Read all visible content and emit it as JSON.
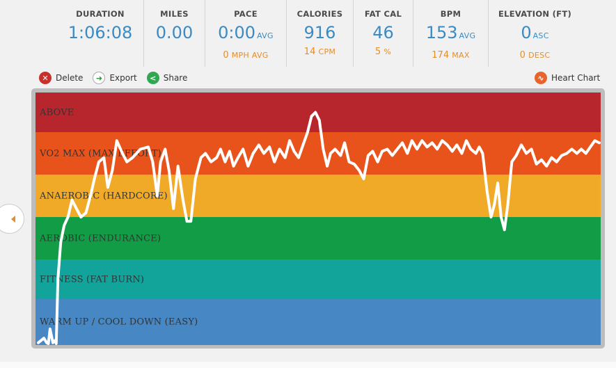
{
  "stats": {
    "duration": {
      "label": "DURATION",
      "value": "1:06:08"
    },
    "miles": {
      "label": "MILES",
      "value": "0.00"
    },
    "pace": {
      "label": "PACE",
      "value": "0:00",
      "unit": "AVG",
      "sub_value": "0",
      "sub_unit": "MPH AVG"
    },
    "calories": {
      "label": "CALORIES",
      "value": "916",
      "sub_value": "14",
      "sub_unit": "CPM"
    },
    "fat_cal": {
      "label": "FAT CAL",
      "value": "46",
      "sub_value": "5",
      "sub_unit": "%"
    },
    "bpm": {
      "label": "BPM",
      "value": "153",
      "unit": "AVG",
      "sub_value": "174",
      "sub_unit": "MAX"
    },
    "elevation": {
      "label": "ELEVATION (FT)",
      "value": "0",
      "unit": "ASC",
      "sub_value": "0",
      "sub_unit": "DESC"
    }
  },
  "toolbar": {
    "delete_label": "Delete",
    "export_label": "Export",
    "share_label": "Share",
    "heart_chart_label": "Heart Chart"
  },
  "zones": [
    {
      "label": "ABOVE",
      "color": "#b8262d"
    },
    {
      "label": "VO2 MAX (MAX EFFORT)",
      "color": "#e8521b"
    },
    {
      "label": "ANAEROBIC (HARDCORE)",
      "color": "#f0aa27"
    },
    {
      "label": "AEROBIC (ENDURANCE)",
      "color": "#139c46"
    },
    {
      "label": "FITNESS (FAT BURN)",
      "color": "#12a39a"
    },
    {
      "label": "WARM UP / COOL DOWN (EASY)",
      "color": "#4787c4"
    }
  ],
  "colors": {
    "accent_blue": "#3b8ac2",
    "accent_orange": "#e38d2b",
    "hr_line": "#ffffff"
  },
  "chart_data": {
    "type": "line",
    "title": "",
    "xlabel": "",
    "ylabel": "",
    "xlim": [
      0,
      100
    ],
    "ylim": [
      0,
      6
    ],
    "series": [
      {
        "values": [
          [
            0.0,
            0.05
          ],
          [
            1.0,
            0.15
          ],
          [
            1.5,
            0.05
          ],
          [
            1.8,
            0.0
          ],
          [
            2.1,
            0.35
          ],
          [
            2.6,
            0.05
          ],
          [
            3.0,
            0.1
          ],
          [
            3.2,
            0.0
          ],
          [
            3.5,
            1.5
          ],
          [
            4.0,
            2.4
          ],
          [
            4.6,
            2.8
          ],
          [
            5.3,
            3.0
          ],
          [
            6.0,
            3.4
          ],
          [
            6.8,
            3.2
          ],
          [
            7.6,
            3.0
          ],
          [
            8.5,
            3.1
          ],
          [
            9.3,
            3.5
          ],
          [
            10.0,
            3.9
          ],
          [
            10.8,
            4.3
          ],
          [
            11.7,
            4.4
          ],
          [
            12.4,
            3.7
          ],
          [
            13.2,
            4.1
          ],
          [
            14.0,
            4.8
          ],
          [
            15.0,
            4.5
          ],
          [
            15.8,
            4.3
          ],
          [
            16.8,
            4.4
          ],
          [
            18.2,
            4.6
          ],
          [
            19.6,
            4.65
          ],
          [
            20.4,
            4.3
          ],
          [
            21.2,
            3.5
          ],
          [
            21.8,
            4.3
          ],
          [
            22.6,
            4.6
          ],
          [
            23.3,
            4.1
          ],
          [
            24.1,
            3.2
          ],
          [
            24.9,
            4.2
          ],
          [
            25.8,
            3.4
          ],
          [
            26.5,
            2.9
          ],
          [
            27.2,
            2.9
          ],
          [
            28.0,
            3.9
          ],
          [
            29.0,
            4.4
          ],
          [
            29.8,
            4.5
          ],
          [
            30.8,
            4.3
          ],
          [
            31.8,
            4.4
          ],
          [
            32.5,
            4.6
          ],
          [
            33.3,
            4.3
          ],
          [
            34.1,
            4.55
          ],
          [
            34.8,
            4.2
          ],
          [
            35.6,
            4.4
          ],
          [
            36.5,
            4.6
          ],
          [
            37.4,
            4.2
          ],
          [
            38.3,
            4.5
          ],
          [
            39.3,
            4.7
          ],
          [
            40.2,
            4.5
          ],
          [
            41.2,
            4.65
          ],
          [
            42.1,
            4.3
          ],
          [
            43.0,
            4.6
          ],
          [
            44.0,
            4.4
          ],
          [
            44.8,
            4.8
          ],
          [
            45.6,
            4.55
          ],
          [
            46.4,
            4.4
          ],
          [
            47.2,
            4.7
          ],
          [
            48.0,
            5.0
          ],
          [
            48.7,
            5.4
          ],
          [
            49.4,
            5.5
          ],
          [
            50.1,
            5.3
          ],
          [
            50.8,
            4.6
          ],
          [
            51.5,
            4.2
          ],
          [
            52.1,
            4.5
          ],
          [
            52.9,
            4.6
          ],
          [
            53.9,
            4.45
          ],
          [
            54.6,
            4.75
          ],
          [
            55.4,
            4.3
          ],
          [
            56.3,
            4.25
          ],
          [
            57.2,
            4.1
          ],
          [
            58.0,
            3.9
          ],
          [
            58.8,
            4.45
          ],
          [
            59.6,
            4.55
          ],
          [
            60.5,
            4.3
          ],
          [
            61.3,
            4.55
          ],
          [
            62.2,
            4.6
          ],
          [
            63.1,
            4.45
          ],
          [
            64.0,
            4.6
          ],
          [
            64.9,
            4.75
          ],
          [
            65.8,
            4.5
          ],
          [
            66.6,
            4.8
          ],
          [
            67.5,
            4.6
          ],
          [
            68.4,
            4.8
          ],
          [
            69.3,
            4.65
          ],
          [
            70.2,
            4.75
          ],
          [
            71.1,
            4.6
          ],
          [
            72.0,
            4.8
          ],
          [
            72.9,
            4.7
          ],
          [
            73.8,
            4.55
          ],
          [
            74.6,
            4.7
          ],
          [
            75.5,
            4.5
          ],
          [
            76.3,
            4.8
          ],
          [
            77.1,
            4.6
          ],
          [
            78.0,
            4.5
          ],
          [
            78.6,
            4.65
          ],
          [
            79.2,
            4.5
          ],
          [
            80.0,
            3.6
          ],
          [
            80.7,
            3.0
          ],
          [
            81.3,
            3.3
          ],
          [
            81.9,
            3.8
          ],
          [
            82.5,
            3.0
          ],
          [
            83.1,
            2.7
          ],
          [
            83.7,
            3.3
          ],
          [
            84.4,
            4.3
          ],
          [
            85.2,
            4.45
          ],
          [
            86.1,
            4.7
          ],
          [
            87.0,
            4.5
          ],
          [
            87.9,
            4.6
          ],
          [
            88.8,
            4.25
          ],
          [
            89.7,
            4.35
          ],
          [
            90.6,
            4.2
          ],
          [
            91.5,
            4.4
          ],
          [
            92.4,
            4.3
          ],
          [
            93.3,
            4.45
          ],
          [
            94.2,
            4.5
          ],
          [
            95.1,
            4.6
          ],
          [
            96.0,
            4.5
          ],
          [
            96.8,
            4.6
          ],
          [
            97.6,
            4.5
          ],
          [
            98.4,
            4.65
          ],
          [
            99.2,
            4.8
          ],
          [
            100.0,
            4.75
          ]
        ]
      }
    ]
  }
}
